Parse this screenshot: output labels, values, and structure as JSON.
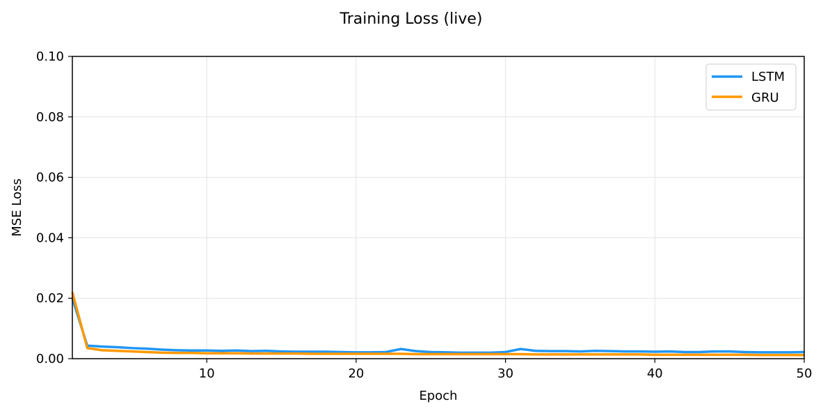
{
  "chart_data": {
    "type": "line",
    "title": "Training Loss (live)",
    "xlabel": "Epoch",
    "ylabel": "MSE Loss",
    "xlim": [
      1,
      50
    ],
    "ylim": [
      0,
      0.1
    ],
    "xticks": [
      10,
      20,
      30,
      40,
      50
    ],
    "yticks": [
      0.0,
      0.02,
      0.04,
      0.06,
      0.08,
      0.1
    ],
    "ytick_labels": [
      "0.00",
      "0.02",
      "0.04",
      "0.06",
      "0.08",
      "0.10"
    ],
    "grid": true,
    "legend_position": "top-right",
    "x": [
      1,
      2,
      3,
      4,
      5,
      6,
      7,
      8,
      9,
      10,
      11,
      12,
      13,
      14,
      15,
      16,
      17,
      18,
      19,
      20,
      21,
      22,
      23,
      24,
      25,
      26,
      27,
      28,
      29,
      30,
      31,
      32,
      33,
      34,
      35,
      36,
      37,
      38,
      39,
      40,
      41,
      42,
      43,
      44,
      45,
      46,
      47,
      48,
      49,
      50
    ],
    "series": [
      {
        "name": "LSTM",
        "color": "#2196F3",
        "values": [
          0.02,
          0.0043,
          0.004,
          0.0038,
          0.0035,
          0.0033,
          0.003,
          0.0028,
          0.0027,
          0.0027,
          0.0026,
          0.0027,
          0.0025,
          0.0026,
          0.0024,
          0.0023,
          0.0023,
          0.0023,
          0.0022,
          0.0021,
          0.0021,
          0.0022,
          0.0032,
          0.0025,
          0.0022,
          0.0021,
          0.002,
          0.002,
          0.002,
          0.0022,
          0.0032,
          0.0026,
          0.0025,
          0.0025,
          0.0024,
          0.0026,
          0.0025,
          0.0024,
          0.0024,
          0.0023,
          0.0024,
          0.0022,
          0.0022,
          0.0024,
          0.0024,
          0.0022,
          0.0021,
          0.0021,
          0.0021,
          0.0022
        ]
      },
      {
        "name": "GRU",
        "color": "#FF9800",
        "values": [
          0.022,
          0.0035,
          0.0028,
          0.0026,
          0.0024,
          0.0022,
          0.002,
          0.0019,
          0.0019,
          0.0018,
          0.0018,
          0.0018,
          0.0017,
          0.0017,
          0.0017,
          0.0017,
          0.0016,
          0.0016,
          0.0016,
          0.0016,
          0.0016,
          0.0016,
          0.0016,
          0.0015,
          0.0015,
          0.0015,
          0.0015,
          0.0015,
          0.0015,
          0.0015,
          0.0015,
          0.0014,
          0.0014,
          0.0014,
          0.0014,
          0.0014,
          0.0014,
          0.0014,
          0.0014,
          0.0013,
          0.0013,
          0.0013,
          0.0013,
          0.0013,
          0.0013,
          0.0013,
          0.0012,
          0.0012,
          0.0012,
          0.0012
        ]
      }
    ]
  }
}
